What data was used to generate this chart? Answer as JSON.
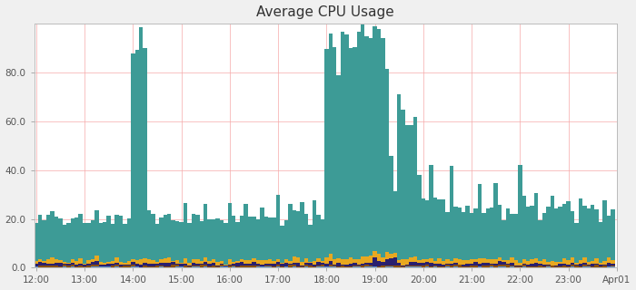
{
  "title": "Average CPU Usage",
  "background_color": "#f0f0f0",
  "plot_bg_color": "#ffffff",
  "xlabel": "",
  "ylabel": "",
  "ylim": [
    0,
    100
  ],
  "yticks": [
    0.0,
    20.0,
    40.0,
    60.0,
    80.0
  ],
  "xtick_labels": [
    "12:00",
    "13:00",
    "14:00",
    "15:00",
    "16:00",
    "17:00",
    "18:00",
    "19:00",
    "20:00",
    "21:00",
    "22:00",
    "23:00",
    "Apr01"
  ],
  "teal_color": "#3d9b96",
  "orange_color": "#e8a820",
  "dark_blue_color": "#2a1f6e",
  "brown_color": "#8b5010",
  "light_blue_color": "#5b90cc",
  "red_grid_color": "#f5aaaa",
  "n_bars": 144,
  "bars_per_hour": 12,
  "title_fontsize": 11
}
